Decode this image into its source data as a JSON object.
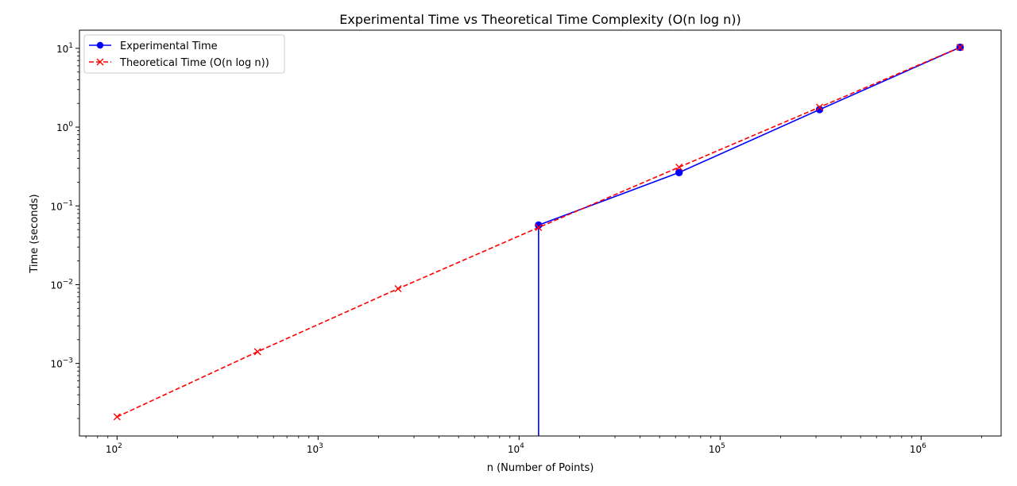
{
  "chart_data": {
    "type": "line",
    "title": "Experimental Time vs Theoretical Time Complexity (O(n log n))",
    "xlabel": "n (Number of Points)",
    "ylabel": "Time (seconds)",
    "x_scale": "log",
    "y_scale": "log",
    "xlim": [
      65,
      2500000
    ],
    "ylim": [
      0.00012,
      17
    ],
    "grid": false,
    "legend_position": "upper-left",
    "x_ticks": [
      {
        "value": 100,
        "base": "10",
        "exp": "2"
      },
      {
        "value": 1000,
        "base": "10",
        "exp": "3"
      },
      {
        "value": 10000,
        "base": "10",
        "exp": "4"
      },
      {
        "value": 100000,
        "base": "10",
        "exp": "5"
      },
      {
        "value": 1000000,
        "base": "10",
        "exp": "6"
      }
    ],
    "y_ticks": [
      {
        "value": 0.001,
        "base": "10",
        "exp": "−3"
      },
      {
        "value": 0.01,
        "base": "10",
        "exp": "−2"
      },
      {
        "value": 0.1,
        "base": "10",
        "exp": "−1"
      },
      {
        "value": 1,
        "base": "10",
        "exp": "0"
      },
      {
        "value": 10,
        "base": "10",
        "exp": "1"
      }
    ],
    "series": [
      {
        "name": "Experimental Time",
        "color": "#0000ff",
        "marker": "circle",
        "linestyle": "solid",
        "x": [
          100,
          500,
          2500,
          12500,
          62500,
          312500,
          1562500
        ],
        "y": [
          0,
          0,
          0,
          0.057,
          0.265,
          1.67,
          10.3
        ]
      },
      {
        "name": "Theoretical Time (O(n log n))",
        "color": "#ff0000",
        "marker": "x",
        "linestyle": "dashed",
        "x": [
          100,
          500,
          2500,
          12500,
          62500,
          312500,
          1562500
        ],
        "y": [
          0.00021,
          0.00141,
          0.00889,
          0.0532,
          0.31,
          1.79,
          10.3
        ]
      }
    ]
  }
}
